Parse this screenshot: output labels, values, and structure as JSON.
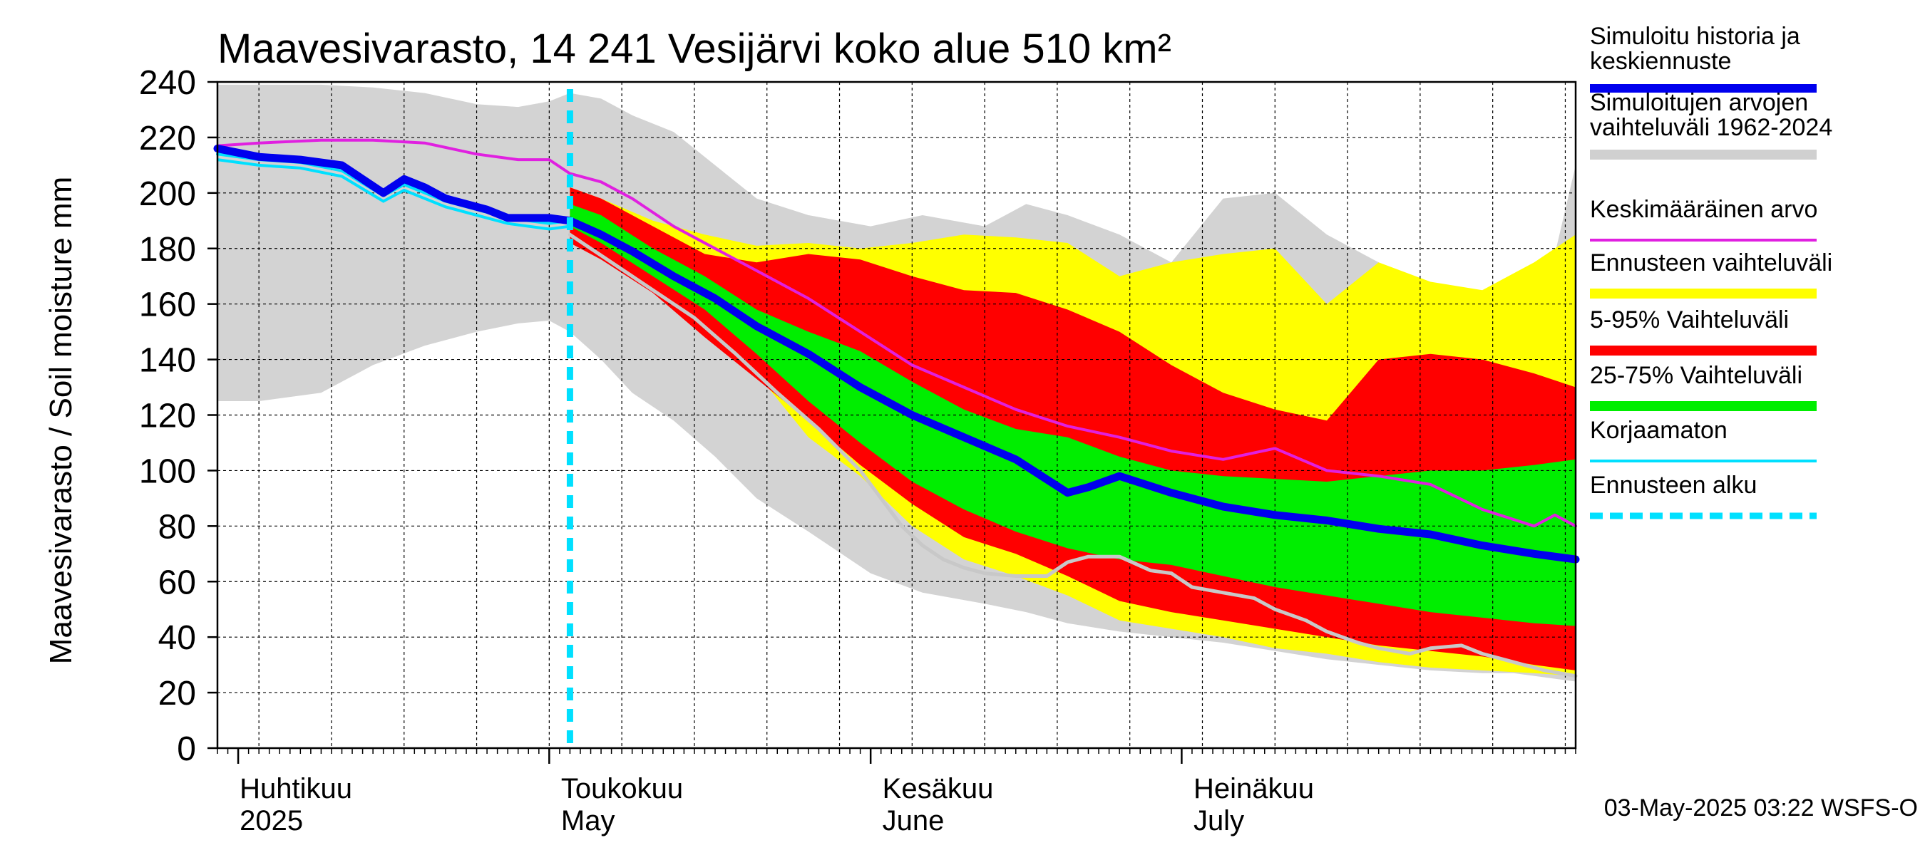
{
  "chart_data": {
    "type": "area",
    "title": "Maavesivarasto, 14 241 Vesijärvi koko alue 510 km²",
    "ylabel": "Maavesivarasto / Soil moisture   mm",
    "ylim": [
      0,
      240
    ],
    "yticks": [
      0,
      20,
      40,
      60,
      80,
      100,
      120,
      140,
      160,
      180,
      200,
      220,
      240
    ],
    "x_range_days": [
      -32,
      99
    ],
    "x_unit": "days relative to 1 May 2025",
    "months": [
      {
        "name": "Huhtikuu",
        "name_en": "2025",
        "day": -30,
        "label_day": -30
      },
      {
        "name": "Toukokuu",
        "name_en": "May",
        "day": 0,
        "label_day": 1
      },
      {
        "name": "Kesäkuu",
        "name_en": "June",
        "day": 31,
        "label_day": 32
      },
      {
        "name": "Heinäkuu",
        "name_en": "July",
        "day": 61,
        "label_day": 62
      }
    ],
    "forecast_start_day": 2,
    "history_range": {
      "x": [
        -32,
        -28,
        -22,
        -17,
        -12,
        -7,
        -3,
        0,
        2,
        5,
        8,
        12,
        16,
        20,
        25,
        31,
        36,
        42,
        46,
        50,
        55,
        60,
        65,
        70,
        75,
        80,
        85,
        90,
        93,
        97,
        99
      ],
      "high": [
        239,
        239,
        239,
        238,
        236,
        232,
        231,
        233,
        236,
        234,
        228,
        222,
        210,
        198,
        192,
        188,
        192,
        188,
        196,
        192,
        185,
        175,
        198,
        200,
        185,
        175,
        163,
        165,
        152,
        178,
        210
      ],
      "low": [
        125,
        125,
        128,
        138,
        145,
        150,
        153,
        154,
        150,
        140,
        128,
        118,
        105,
        90,
        78,
        63,
        56,
        52,
        49,
        45,
        42,
        40,
        38,
        35,
        32,
        30,
        28,
        27,
        27,
        25,
        24
      ]
    },
    "series": [
      {
        "name": "Ennusteen vaihteluväli",
        "color": "#ffff00",
        "x": [
          2,
          5,
          10,
          15,
          20,
          25,
          30,
          35,
          40,
          45,
          50,
          55,
          60,
          65,
          70,
          75,
          80,
          85,
          90,
          95,
          99
        ],
        "high": [
          202,
          198,
          190,
          185,
          181,
          182,
          180,
          182,
          185,
          184,
          182,
          170,
          175,
          178,
          180,
          160,
          175,
          168,
          165,
          175,
          185
        ],
        "low": [
          186,
          178,
          166,
          152,
          135,
          112,
          98,
          80,
          68,
          62,
          55,
          46,
          43,
          40,
          36,
          34,
          31,
          29,
          28,
          27,
          26
        ]
      },
      {
        "name": "5-95% Vaihteluväli",
        "color": "#ff0000",
        "x": [
          2,
          5,
          10,
          15,
          20,
          25,
          30,
          35,
          40,
          45,
          50,
          55,
          60,
          65,
          70,
          75,
          80,
          85,
          90,
          95,
          99
        ],
        "high": [
          202,
          198,
          188,
          178,
          175,
          178,
          176,
          170,
          165,
          164,
          158,
          150,
          138,
          128,
          122,
          118,
          140,
          142,
          140,
          135,
          130
        ],
        "low": [
          182,
          176,
          164,
          148,
          133,
          118,
          102,
          88,
          76,
          70,
          62,
          53,
          49,
          46,
          43,
          40,
          37,
          35,
          33,
          30,
          28
        ]
      },
      {
        "name": "25-75% Vaihteluväli",
        "color": "#00ee00",
        "x": [
          2,
          5,
          10,
          15,
          20,
          25,
          30,
          35,
          40,
          45,
          50,
          55,
          60,
          65,
          70,
          75,
          80,
          85,
          90,
          95,
          99
        ],
        "high": [
          196,
          192,
          180,
          170,
          158,
          150,
          143,
          132,
          122,
          115,
          112,
          105,
          100,
          98,
          97,
          96,
          98,
          100,
          100,
          102,
          104
        ],
        "low": [
          188,
          182,
          170,
          158,
          142,
          125,
          110,
          96,
          86,
          78,
          72,
          68,
          66,
          62,
          58,
          55,
          52,
          49,
          47,
          45,
          44
        ]
      }
    ],
    "lines": [
      {
        "name": "Keskimääräinen arvo",
        "color": "#e020e0",
        "x": [
          -32,
          -28,
          -22,
          -17,
          -12,
          -7,
          -3,
          0,
          2,
          5,
          8,
          12,
          16,
          20,
          25,
          30,
          35,
          40,
          45,
          50,
          55,
          60,
          65,
          70,
          75,
          80,
          85,
          90,
          95,
          97,
          99
        ],
        "y": [
          217,
          218,
          219,
          219,
          218,
          214,
          212,
          212,
          207,
          204,
          198,
          188,
          180,
          172,
          162,
          150,
          138,
          130,
          122,
          116,
          112,
          107,
          104,
          108,
          100,
          98,
          95,
          86,
          80,
          84,
          80
        ]
      },
      {
        "name": "Simuloitu historia ja keskiennuste",
        "color": "#0000ee",
        "x": [
          -32,
          -28,
          -24,
          -20,
          -16,
          -14,
          -12,
          -10,
          -6,
          -4,
          0,
          2,
          5,
          8,
          12,
          16,
          20,
          25,
          30,
          35,
          40,
          45,
          50,
          52,
          55,
          60,
          65,
          70,
          75,
          80,
          85,
          90,
          95,
          99
        ],
        "y": [
          216,
          213,
          212,
          210,
          200,
          205,
          202,
          198,
          194,
          191,
          191,
          190,
          185,
          179,
          170,
          162,
          152,
          142,
          130,
          120,
          112,
          104,
          92,
          94,
          98,
          92,
          87,
          84,
          82,
          79,
          77,
          73,
          70,
          68
        ]
      },
      {
        "name": "Korjaamaton",
        "color": "#00e0ff",
        "x": [
          -32,
          -28,
          -24,
          -20,
          -16,
          -14,
          -12,
          -10,
          -6,
          -4,
          0,
          2
        ],
        "y": [
          214,
          212,
          211,
          208,
          199,
          203,
          200,
          197,
          193,
          191,
          189,
          190
        ]
      },
      {
        "name": "grey_line",
        "color": "#c8c8c8",
        "x": [
          2,
          6,
          10,
          14,
          18,
          22,
          26,
          30,
          32,
          34,
          36,
          38,
          40,
          42,
          45,
          48,
          50,
          52,
          55,
          58,
          60,
          62,
          65,
          68,
          70,
          73,
          75,
          78,
          80,
          83,
          85,
          88,
          90,
          93,
          96,
          99
        ],
        "y": [
          185,
          175,
          165,
          155,
          142,
          128,
          115,
          100,
          90,
          80,
          73,
          68,
          65,
          63,
          62,
          62,
          67,
          69,
          69,
          64,
          63,
          58,
          56,
          54,
          50,
          46,
          42,
          38,
          36,
          34,
          36,
          37,
          34,
          31,
          28,
          26
        ]
      }
    ]
  },
  "legend": [
    {
      "label": "Simuloitu historia ja",
      "label2": "keskiennuste",
      "color": "#0000ee",
      "style": "solid"
    },
    {
      "label": "Simuloitujen arvojen",
      "label2": "vaihteluväli 1962-2024",
      "color": "#d0d0d0",
      "style": "solid"
    },
    {
      "label": "Keskimääräinen arvo",
      "label2": "",
      "color": "#e020e0",
      "style": "solid"
    },
    {
      "label": "Ennusteen vaihteluväli",
      "label2": "",
      "color": "#ffff00",
      "style": "solid"
    },
    {
      "label": "5-95% Vaihteluväli",
      "label2": "",
      "color": "#ff0000",
      "style": "solid"
    },
    {
      "label": "25-75% Vaihteluväli",
      "label2": "",
      "color": "#00ee00",
      "style": "solid"
    },
    {
      "label": "Korjaamaton",
      "label2": "",
      "color": "#00e0ff",
      "style": "solid"
    },
    {
      "label": "Ennusteen alku",
      "label2": "",
      "color": "#00e0ff",
      "style": "dashed"
    }
  ],
  "footer": "03-May-2025 03:22 WSFS-O"
}
